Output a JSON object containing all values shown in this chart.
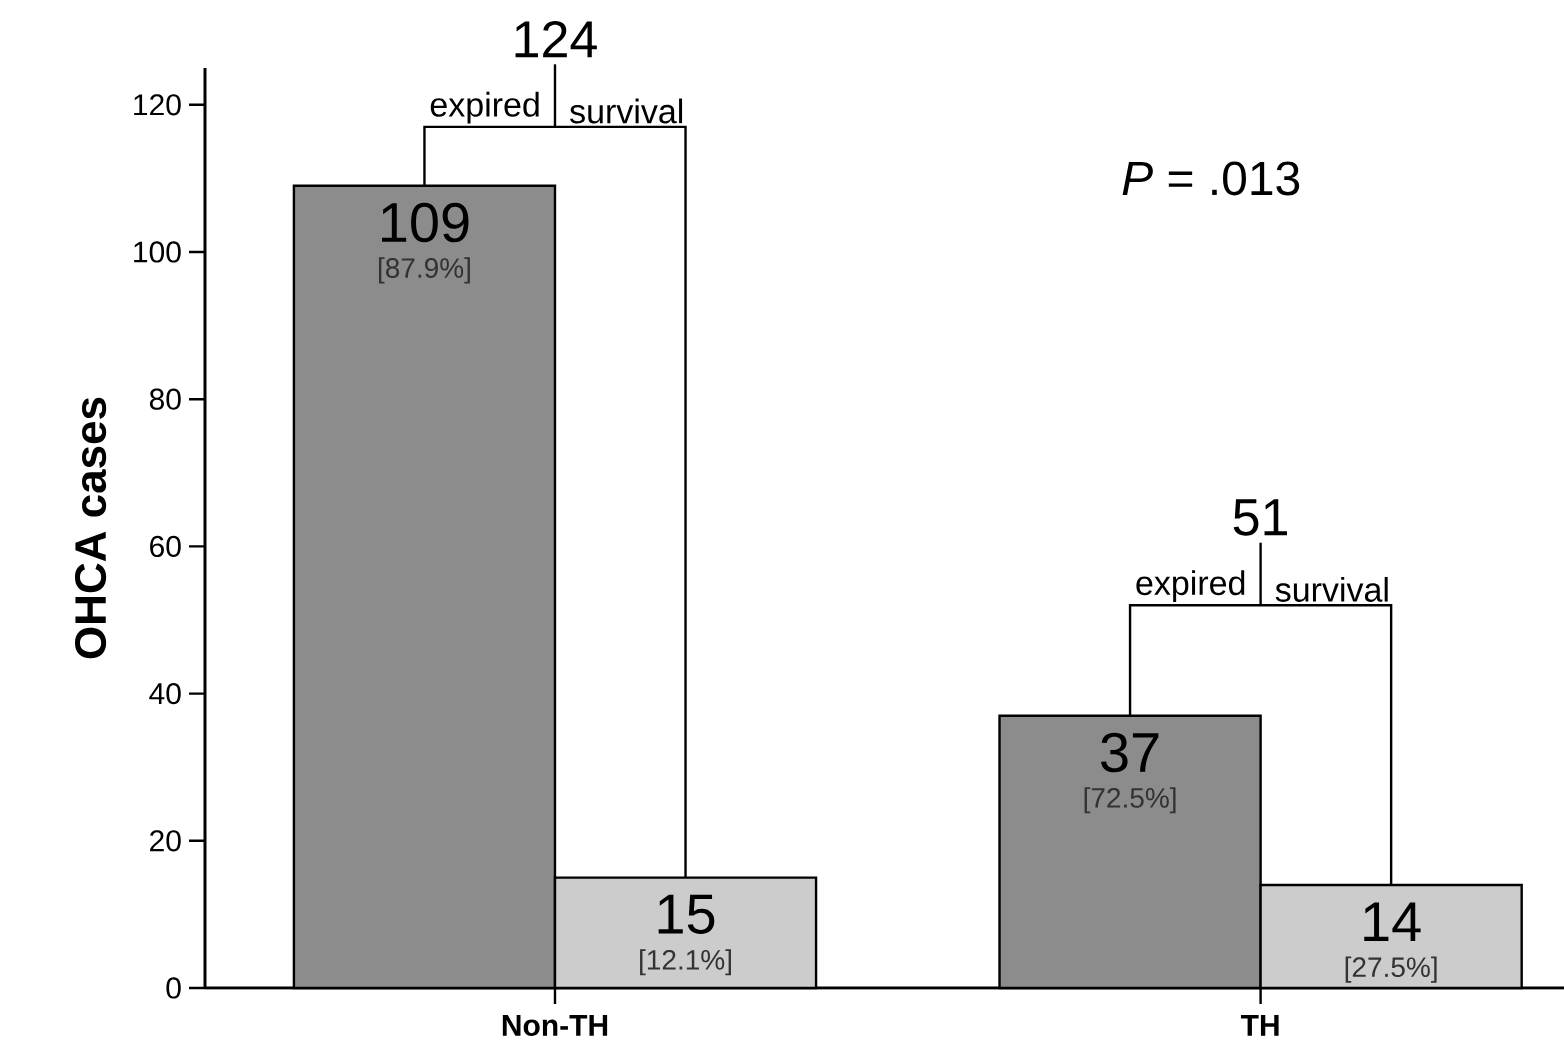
{
  "chart_data": {
    "type": "bar",
    "categories": [
      "Non-TH",
      "TH"
    ],
    "series": [
      {
        "name": "expired",
        "color": "#8c8c8c",
        "values": [
          109,
          37
        ]
      },
      {
        "name": "survival",
        "color": "#cccccc",
        "values": [
          15,
          14
        ]
      }
    ],
    "ylabel": "OHCA cases",
    "ylim": [
      0,
      125
    ],
    "yticks": [
      0,
      20,
      40,
      60,
      80,
      100,
      120
    ],
    "data_labels": true,
    "annotations": [
      "*P* = .013",
      "[87.9%]",
      "[72.5%]",
      "[12.1%]",
      "[27.5%]",
      "124",
      "51"
    ]
  }
}
